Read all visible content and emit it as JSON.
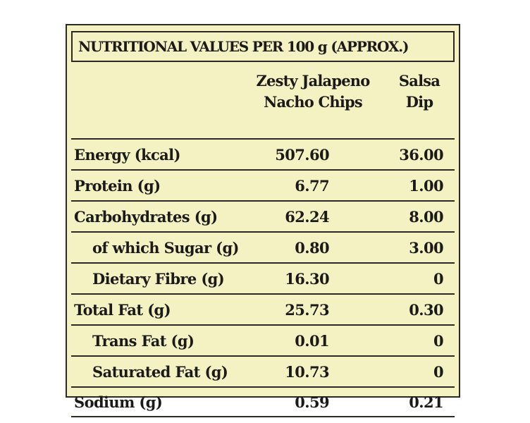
{
  "title": "NUTRITIONAL VALUES PER 100 g (APPROX.)",
  "columns": [
    {
      "line1": "Zesty Jalapeno",
      "line2": "Nacho Chips"
    },
    {
      "line1": "Salsa",
      "line2": "Dip"
    }
  ],
  "rows": [
    {
      "name": "Energy (kcal)",
      "chips": "507.60",
      "dip": "36.00",
      "indent": false
    },
    {
      "name": "Protein (g)",
      "chips": "6.77",
      "dip": "1.00",
      "indent": false
    },
    {
      "name": "Carbohydrates (g)",
      "chips": "62.24",
      "dip": "8.00",
      "indent": false
    },
    {
      "name": "of which Sugar (g)",
      "chips": "0.80",
      "dip": "3.00",
      "indent": true
    },
    {
      "name": "Dietary Fibre (g)",
      "chips": "16.30",
      "dip": "0",
      "indent": true
    },
    {
      "name": "Total Fat (g)",
      "chips": "25.73",
      "dip": "0.30",
      "indent": false
    },
    {
      "name": "Trans Fat (g)",
      "chips": "0.01",
      "dip": "0",
      "indent": true
    },
    {
      "name": "Saturated Fat (g)",
      "chips": "10.73",
      "dip": "0",
      "indent": true
    },
    {
      "name": "Sodium (g)",
      "chips": "0.59",
      "dip": "0.21",
      "indent": false
    }
  ],
  "colors": {
    "background": "#f4f2c2",
    "text": "#1a1a18",
    "border": "#2a2a22"
  }
}
